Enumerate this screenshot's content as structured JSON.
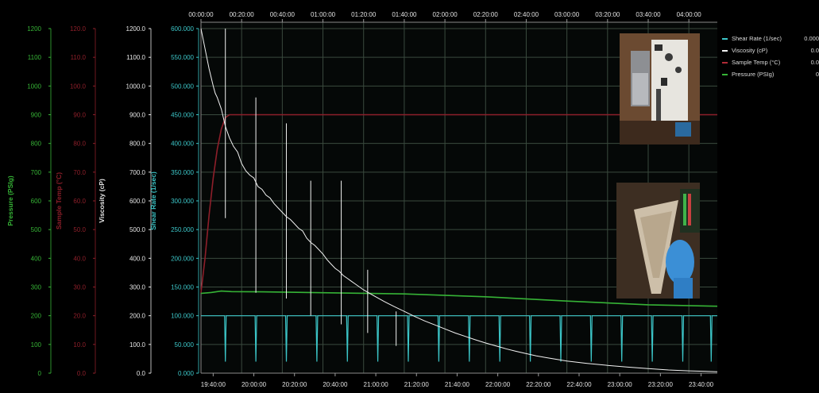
{
  "colors": {
    "background": "#000000",
    "grid": "#3a4a3e",
    "shear_rate": "#3cc6c8",
    "viscosity": "#f2f2f2",
    "sample_temp": "#8e1f2a",
    "pressure": "#36b336",
    "axis_text": "#e0e0e0"
  },
  "axes": {
    "pressure": {
      "label": "Pressure (PSIg)",
      "ticks": [
        "0",
        "100",
        "200",
        "300",
        "400",
        "500",
        "600",
        "700",
        "800",
        "900",
        "1000",
        "1100",
        "1200"
      ]
    },
    "sample_temp": {
      "label": "Sample Temp (°C)",
      "ticks": [
        "0.0",
        "10.0",
        "20.0",
        "30.0",
        "40.0",
        "50.0",
        "60.0",
        "70.0",
        "80.0",
        "90.0",
        "100.0",
        "110.0",
        "120.0"
      ]
    },
    "viscosity": {
      "label": "Viscosity (cP)",
      "ticks": [
        "0.0",
        "100.0",
        "200.0",
        "300.0",
        "400.0",
        "500.0",
        "600.0",
        "700.0",
        "800.0",
        "900.0",
        "1000.0",
        "1100.0",
        "1200.0"
      ]
    },
    "shear_rate": {
      "label": "Shear Rate (1/sec)",
      "ticks": [
        "0.000",
        "50.000",
        "100.000",
        "150.000",
        "200.000",
        "250.000",
        "300.000",
        "350.000",
        "400.000",
        "450.000",
        "500.000",
        "550.000",
        "600.000"
      ]
    },
    "elapsed_ticks": [
      "00:00:00",
      "00:20:00",
      "00:40:00",
      "01:00:00",
      "01:20:00",
      "01:40:00",
      "02:00:00",
      "02:20:00",
      "02:40:00",
      "03:00:00",
      "03:20:00",
      "03:40:00",
      "04:00:00"
    ],
    "clock_ticks": [
      "19:40:00",
      "20:00:00",
      "20:20:00",
      "20:40:00",
      "21:00:00",
      "21:20:00",
      "21:40:00",
      "22:00:00",
      "22:20:00",
      "22:40:00",
      "23:00:00",
      "23:20:00",
      "23:40:00"
    ]
  },
  "legend": [
    {
      "name": "Shear Rate (1/sec)",
      "value": "0.000",
      "color": "#3cc6c8"
    },
    {
      "name": "Viscosity (cP)",
      "value": "0.0",
      "color": "#f2f2f2"
    },
    {
      "name": "Sample Temp (°C)",
      "value": "0.0",
      "color": "#8e1f2a"
    },
    {
      "name": "Pressure (PSIg)",
      "value": "0",
      "color": "#36b336"
    }
  ],
  "chart_data": {
    "type": "line",
    "x_unit": "elapsed minutes",
    "xlim": [
      0,
      254
    ],
    "grid": true,
    "legend_placement": "right",
    "series": [
      {
        "name": "Viscosity (cP)",
        "axis": "viscosity",
        "ylim": [
          0,
          1200
        ],
        "points": [
          [
            0,
            1200
          ],
          [
            2,
            1130
          ],
          [
            4,
            1060
          ],
          [
            6,
            1000
          ],
          [
            7,
            975
          ],
          [
            8,
            960
          ],
          [
            10,
            920
          ],
          [
            12,
            860
          ],
          [
            14,
            820
          ],
          [
            16,
            790
          ],
          [
            18,
            770
          ],
          [
            20,
            730
          ],
          [
            22,
            705
          ],
          [
            24,
            690
          ],
          [
            26,
            680
          ],
          [
            28,
            650
          ],
          [
            30,
            640
          ],
          [
            32,
            620
          ],
          [
            34,
            610
          ],
          [
            36,
            590
          ],
          [
            38,
            575
          ],
          [
            40,
            560
          ],
          [
            42,
            545
          ],
          [
            44,
            535
          ],
          [
            46,
            520
          ],
          [
            48,
            505
          ],
          [
            50,
            495
          ],
          [
            52,
            470
          ],
          [
            54,
            455
          ],
          [
            56,
            445
          ],
          [
            58,
            430
          ],
          [
            60,
            415
          ],
          [
            62,
            395
          ],
          [
            64,
            380
          ],
          [
            66,
            365
          ],
          [
            68,
            355
          ],
          [
            70,
            340
          ],
          [
            72,
            330
          ],
          [
            74,
            320
          ],
          [
            76,
            310
          ],
          [
            80,
            290
          ],
          [
            85,
            270
          ],
          [
            90,
            250
          ],
          [
            95,
            232
          ],
          [
            100,
            215
          ],
          [
            105,
            198
          ],
          [
            110,
            182
          ],
          [
            115,
            168
          ],
          [
            120,
            154
          ],
          [
            125,
            140
          ],
          [
            130,
            128
          ],
          [
            135,
            116
          ],
          [
            140,
            105
          ],
          [
            145,
            95
          ],
          [
            150,
            85
          ],
          [
            155,
            76
          ],
          [
            160,
            68
          ],
          [
            165,
            60
          ],
          [
            170,
            54
          ],
          [
            175,
            48
          ],
          [
            180,
            42
          ],
          [
            190,
            34
          ],
          [
            200,
            27
          ],
          [
            210,
            21
          ],
          [
            220,
            16
          ],
          [
            230,
            11
          ],
          [
            240,
            8
          ],
          [
            254,
            5
          ]
        ],
        "spikes": [
          [
            12,
            540
          ],
          [
            12,
            1200
          ],
          [
            27,
            280
          ],
          [
            27,
            960
          ],
          [
            42,
            260
          ],
          [
            42,
            870
          ],
          [
            54,
            200
          ],
          [
            54,
            670
          ],
          [
            69,
            170
          ],
          [
            69,
            670
          ],
          [
            82,
            140
          ],
          [
            82,
            360
          ],
          [
            96,
            95
          ],
          [
            96,
            215
          ]
        ]
      },
      {
        "name": "Sample Temp (°C)",
        "axis": "sample_temp",
        "ylim": [
          0,
          120
        ],
        "points": [
          [
            0,
            28
          ],
          [
            2,
            40
          ],
          [
            4,
            55
          ],
          [
            6,
            68
          ],
          [
            8,
            78
          ],
          [
            10,
            85
          ],
          [
            12,
            89
          ],
          [
            14,
            90
          ],
          [
            16,
            90
          ],
          [
            254,
            90
          ]
        ]
      },
      {
        "name": "Pressure (PSIg)",
        "axis": "pressure",
        "ylim": [
          0,
          1200
        ],
        "points": [
          [
            0,
            278
          ],
          [
            5,
            281
          ],
          [
            10,
            286
          ],
          [
            15,
            284
          ],
          [
            30,
            283
          ],
          [
            60,
            280
          ],
          [
            100,
            276
          ],
          [
            140,
            266
          ],
          [
            180,
            251
          ],
          [
            220,
            238
          ],
          [
            254,
            233
          ]
        ]
      },
      {
        "name": "Shear Rate (1/sec)",
        "axis": "shear_rate",
        "ylim": [
          0,
          600
        ],
        "baseline": 100,
        "dips": [
          [
            12,
            20
          ],
          [
            27,
            20
          ],
          [
            42,
            20
          ],
          [
            57,
            20
          ],
          [
            72,
            20
          ],
          [
            87,
            20
          ],
          [
            102,
            20
          ],
          [
            117,
            20
          ],
          [
            132,
            20
          ],
          [
            147,
            20
          ],
          [
            162,
            20
          ],
          [
            177,
            20
          ],
          [
            192,
            20
          ],
          [
            207,
            20
          ],
          [
            222,
            20
          ],
          [
            237,
            20
          ],
          [
            251,
            20
          ]
        ]
      }
    ]
  }
}
